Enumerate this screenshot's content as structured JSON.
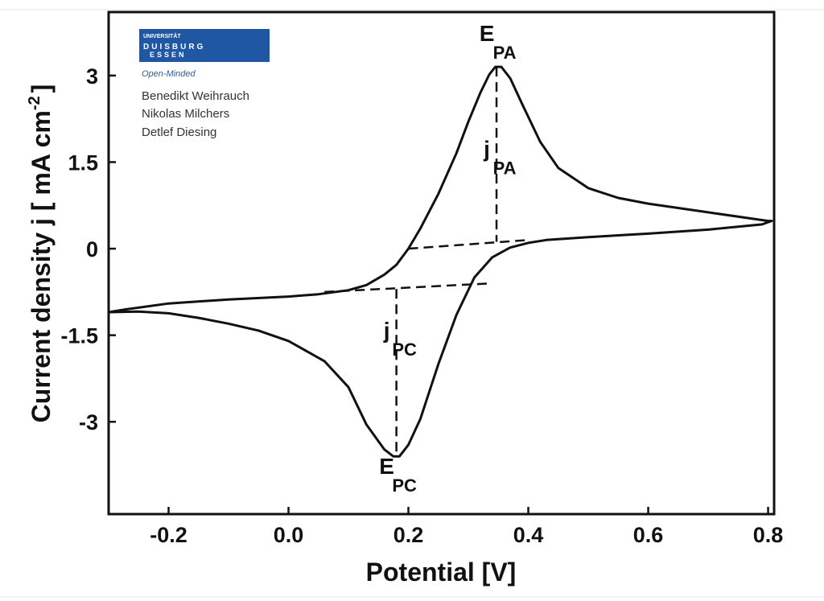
{
  "logo": {
    "line1": "UNIVERSITÄT",
    "line2": "DUISBURG",
    "line3": "ESSEN",
    "tagline": "Open-Minded",
    "color": "#1f57a5"
  },
  "authors": [
    "Benedikt Weihrauch",
    "Nikolas Milchers",
    "Detlef Diesing"
  ],
  "chart_data": {
    "type": "line",
    "title": "",
    "xlabel": "Potential [V]",
    "ylabel": "Current density j  [ mA cm",
    "ylabel_sup": "-2",
    "ylabel_close": "]",
    "xlim": [
      -0.3,
      0.81
    ],
    "ylim": [
      -4.6,
      4.1
    ],
    "x_ticks": [
      -0.2,
      0.0,
      0.2,
      0.4,
      0.6,
      0.8
    ],
    "x_tick_labels": [
      "-0.2",
      "0.0",
      "0.2",
      "0.4",
      "0.6",
      "0.8"
    ],
    "y_ticks": [
      3,
      1.5,
      0,
      -1.5,
      -3
    ],
    "y_tick_labels": [
      "3",
      "1.5",
      "0",
      "-1.5",
      "-3"
    ],
    "grid": false,
    "series": [
      {
        "points": [
          [
            -0.3,
            -1.1
          ],
          [
            -0.27,
            -1.05
          ],
          [
            -0.2,
            -0.95
          ],
          [
            -0.1,
            -0.88
          ],
          [
            0.0,
            -0.83
          ],
          [
            0.05,
            -0.79
          ],
          [
            0.1,
            -0.72
          ],
          [
            0.13,
            -0.63
          ],
          [
            0.16,
            -0.45
          ],
          [
            0.18,
            -0.28
          ],
          [
            0.2,
            0.0
          ],
          [
            0.22,
            0.35
          ],
          [
            0.25,
            0.95
          ],
          [
            0.28,
            1.65
          ],
          [
            0.3,
            2.2
          ],
          [
            0.32,
            2.7
          ],
          [
            0.335,
            3.02
          ],
          [
            0.345,
            3.15
          ],
          [
            0.355,
            3.15
          ],
          [
            0.37,
            2.95
          ],
          [
            0.39,
            2.5
          ],
          [
            0.42,
            1.85
          ],
          [
            0.45,
            1.4
          ],
          [
            0.5,
            1.05
          ],
          [
            0.55,
            0.88
          ],
          [
            0.6,
            0.78
          ],
          [
            0.7,
            0.63
          ],
          [
            0.8,
            0.48
          ],
          [
            0.806,
            0.48
          ],
          [
            0.79,
            0.42
          ],
          [
            0.7,
            0.33
          ],
          [
            0.6,
            0.26
          ],
          [
            0.5,
            0.2
          ],
          [
            0.43,
            0.15
          ],
          [
            0.4,
            0.1
          ],
          [
            0.37,
            0.02
          ],
          [
            0.34,
            -0.15
          ],
          [
            0.31,
            -0.5
          ],
          [
            0.28,
            -1.15
          ],
          [
            0.25,
            -2.0
          ],
          [
            0.22,
            -2.95
          ],
          [
            0.2,
            -3.4
          ],
          [
            0.185,
            -3.6
          ],
          [
            0.175,
            -3.6
          ],
          [
            0.16,
            -3.48
          ],
          [
            0.13,
            -3.05
          ],
          [
            0.1,
            -2.4
          ],
          [
            0.06,
            -1.95
          ],
          [
            0.0,
            -1.6
          ],
          [
            -0.05,
            -1.42
          ],
          [
            -0.1,
            -1.3
          ],
          [
            -0.15,
            -1.2
          ],
          [
            -0.2,
            -1.12
          ],
          [
            -0.25,
            -1.09
          ],
          [
            -0.3,
            -1.1
          ]
        ]
      }
    ],
    "guides": [
      {
        "x": [
          0.347,
          0.347
        ],
        "y": [
          3.15,
          0.12
        ]
      },
      {
        "x": [
          0.2,
          0.4
        ],
        "y": [
          0.0,
          0.15
        ]
      },
      {
        "x": [
          0.06,
          0.34
        ],
        "y": [
          -0.75,
          -0.6
        ]
      },
      {
        "x": [
          0.18,
          0.18
        ],
        "y": [
          -0.7,
          -3.6
        ]
      }
    ],
    "annotations": [
      {
        "main": "E",
        "sub": "PA",
        "x": 0.347,
        "y": 3.6
      },
      {
        "main": "j",
        "sub": "PA",
        "x": 0.347,
        "y": 1.6
      },
      {
        "main": "j",
        "sub": "PC",
        "x": 0.18,
        "y": -1.55
      },
      {
        "main": "E",
        "sub": "PC",
        "x": 0.18,
        "y": -3.9
      }
    ]
  }
}
